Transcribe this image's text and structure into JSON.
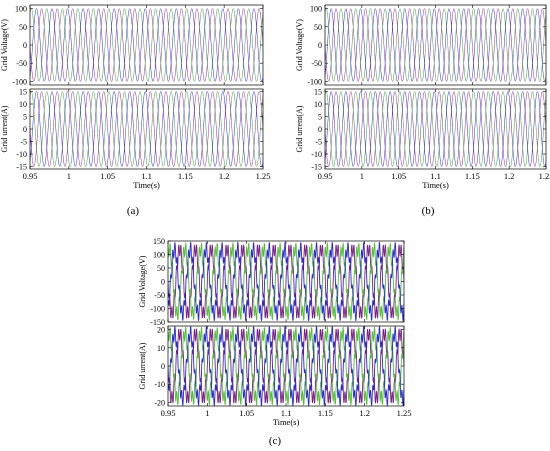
{
  "figure": {
    "panels": [
      {
        "id": "a",
        "caption": "(a)"
      },
      {
        "id": "b",
        "caption": "(b)"
      },
      {
        "id": "c",
        "caption": "(c)"
      }
    ]
  },
  "chart_data": [
    {
      "type": "line",
      "panel": "a",
      "title": "",
      "xlabel": "Time(s)",
      "ylabel": "Grid Voltage(V)",
      "xlim": [
        0.95,
        1.25
      ],
      "ylim": [
        -110,
        110
      ],
      "x_ticks": [
        0.95,
        1,
        1.05,
        1.1,
        1.15,
        1.2,
        1.25
      ],
      "x_ticks_shown": false,
      "y_ticks": [
        -100,
        -50,
        0,
        50,
        100
      ],
      "grid": false,
      "phases": 3,
      "amplitude": 100,
      "frequency_hz": 50,
      "colors": [
        "#8e2a8e",
        "#3a9a3a",
        "#2a2ad0"
      ]
    },
    {
      "type": "line",
      "panel": "a",
      "title": "",
      "xlabel": "Time(s)",
      "ylabel": "Grid urrent(A)",
      "xlim": [
        0.95,
        1.25
      ],
      "ylim": [
        -16,
        16
      ],
      "x_ticks": [
        0.95,
        1,
        1.05,
        1.1,
        1.15,
        1.2,
        1.25
      ],
      "x_ticks_shown": true,
      "y_ticks": [
        -15,
        -10,
        -5,
        0,
        5,
        10,
        15
      ],
      "grid": false,
      "phases": 3,
      "amplitude": 15,
      "frequency_hz": 50,
      "colors": [
        "#8e2a8e",
        "#3a9a3a",
        "#2a2ad0"
      ]
    },
    {
      "type": "line",
      "panel": "b",
      "title": "",
      "xlabel": "Time(s)",
      "ylabel": "Grid Voltage(V)",
      "xlim": [
        0.95,
        1.25
      ],
      "ylim": [
        -110,
        110
      ],
      "x_ticks": [
        0.95,
        1,
        1.05,
        1.1,
        1.15,
        1.2,
        1.25
      ],
      "x_ticks_shown": false,
      "y_ticks": [
        -100,
        -50,
        0,
        50,
        100
      ],
      "grid": false,
      "phases": 3,
      "amplitude": 100,
      "frequency_hz": 50,
      "colors": [
        "#8e2a8e",
        "#3a9a3a",
        "#2a2ad0"
      ]
    },
    {
      "type": "line",
      "panel": "b",
      "title": "",
      "xlabel": "Time(s)",
      "ylabel": "Grid urrent(A)",
      "xlim": [
        0.95,
        1.25
      ],
      "ylim": [
        -16,
        16
      ],
      "x_ticks": [
        0.95,
        1,
        1.05,
        1.1,
        1.15,
        1.2,
        1.25
      ],
      "x_ticks_shown": true,
      "y_ticks": [
        -15,
        -10,
        -5,
        0,
        5,
        10,
        15
      ],
      "grid": false,
      "phases": 3,
      "amplitude": 15,
      "frequency_hz": 50,
      "colors": [
        "#8e2a8e",
        "#3a9a3a",
        "#2a2ad0"
      ]
    },
    {
      "type": "line",
      "panel": "c",
      "title": "",
      "xlabel": "Time(s)",
      "ylabel": "Grid Voltage(V)",
      "xlim": [
        0.95,
        1.25
      ],
      "ylim": [
        -150,
        150
      ],
      "x_ticks": [
        0.95,
        1,
        1.05,
        1.1,
        1.15,
        1.2,
        1.25
      ],
      "x_ticks_shown": false,
      "y_ticks": [
        -150,
        -100,
        -50,
        0,
        50,
        100,
        150
      ],
      "grid": false,
      "phases": 3,
      "amplitude": 120,
      "frequency_hz": 50,
      "harmonic": 0.22,
      "colors": [
        "#7a1f8a",
        "#4fbf2f",
        "#2a2ad0"
      ]
    },
    {
      "type": "line",
      "panel": "c",
      "title": "",
      "xlabel": "Time(s)",
      "ylabel": "Grid urrent(A)",
      "xlim": [
        0.95,
        1.25
      ],
      "ylim": [
        -22,
        22
      ],
      "x_ticks": [
        0.95,
        1,
        1.05,
        1.1,
        1.15,
        1.2,
        1.25
      ],
      "x_ticks_shown": true,
      "y_ticks": [
        -20,
        -10,
        0,
        10,
        20
      ],
      "grid": false,
      "phases": 3,
      "amplitude": 18,
      "frequency_hz": 50,
      "harmonic": 0.22,
      "colors": [
        "#7a1f8a",
        "#4fbf2f",
        "#2a2ad0"
      ]
    }
  ]
}
